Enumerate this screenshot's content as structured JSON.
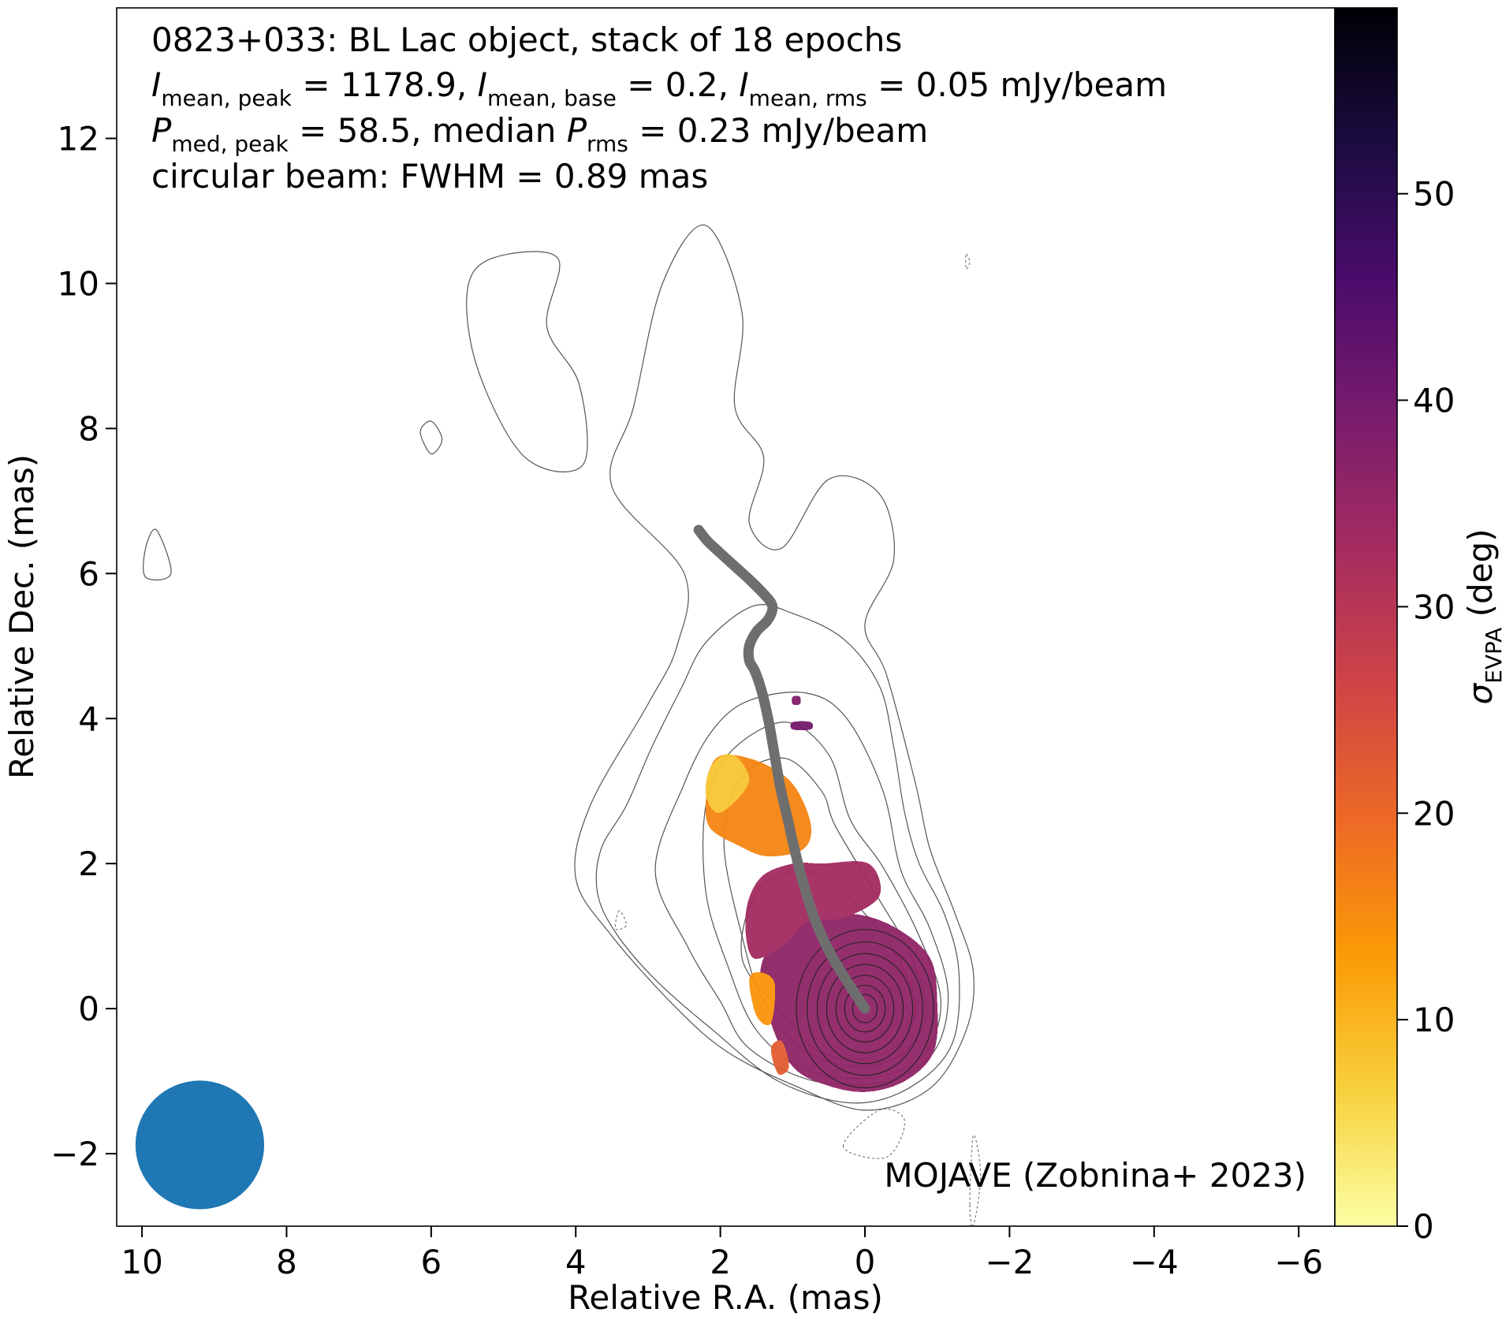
{
  "chart_data": {
    "type": "heatmap",
    "title_lines": [
      "0823+033: BL Lac object, stack of 18 epochs",
      "I_mean,peak = 1178.9, I_mean,base = 0.2, I_mean,rms = 0.05 mJy/beam",
      "P_med,peak = 58.5, median P_rms = 0.23 mJy/beam",
      "circular beam: FWHM = 0.89 mas"
    ],
    "line1": "0823+033: BL Lac object, stack of 18 epochs",
    "line2": {
      "imean_peak_value": " = 1178.9, ",
      "imean_base_value": " = 0.2, ",
      "imean_rms_value": " = 0.05 mJy/beam",
      "sym": "I",
      "sub_peak": "mean, peak",
      "sub_base": "mean, base",
      "sub_rms": "mean, rms"
    },
    "line3": {
      "sym": "P",
      "sub_peak": "med, peak",
      "peak_value": " = 58.5, median ",
      "sub_rms": "rms",
      "rms_value": " = 0.23 mJy/beam"
    },
    "line4": "circular beam: FWHM = 0.89 mas",
    "credit": "MOJAVE (Zobnina+ 2023)",
    "xlabel": "Relative R.A. (mas)",
    "ylabel": "Relative Dec. (mas)",
    "colorbar_label_sym": "σ",
    "colorbar_label_sub": "EVPA",
    "colorbar_label_unit": " (deg)",
    "xlim": [
      10.35,
      -6.5
    ],
    "ylim": [
      -3.0,
      13.8
    ],
    "x_ticks": [
      10,
      8,
      6,
      4,
      2,
      0,
      -2,
      -4,
      -6
    ],
    "x_tick_labels": [
      "10",
      "8",
      "6",
      "4",
      "2",
      "0",
      "−2",
      "−4",
      "−6"
    ],
    "y_ticks": [
      -2,
      0,
      2,
      4,
      6,
      8,
      10,
      12
    ],
    "y_tick_labels": [
      "−2",
      "0",
      "2",
      "4",
      "6",
      "8",
      "10",
      "12"
    ],
    "colorbar_range": [
      0,
      59
    ],
    "colorbar_ticks": [
      0,
      10,
      20,
      30,
      40,
      50
    ],
    "colorbar_tick_labels": [
      "0",
      "10",
      "20",
      "30",
      "40",
      "50"
    ],
    "colormap": "inferno_r",
    "colormap_stops": [
      "#fcffa4",
      "#f7d13d",
      "#fb9b06",
      "#ed6925",
      "#cf4446",
      "#a52c60",
      "#781c6d",
      "#4a0c6b",
      "#1b0c41",
      "#000004"
    ],
    "beam": {
      "x": 9.2,
      "y": -1.88,
      "fwhm_mas": 0.89,
      "color": "#1f77b4"
    },
    "ridge_line": {
      "color": "#6e6e6e",
      "x": [
        0.0,
        0.25,
        0.5,
        0.7,
        0.85,
        0.97,
        1.07,
        1.17,
        1.25,
        1.33,
        1.42,
        1.52,
        1.6,
        1.6,
        1.5,
        1.35,
        1.28,
        1.3,
        1.4,
        1.58,
        1.8,
        2.02,
        2.18,
        2.3
      ],
      "y": [
        0.0,
        0.38,
        0.8,
        1.25,
        1.72,
        2.18,
        2.62,
        3.05,
        3.5,
        3.95,
        4.35,
        4.65,
        4.8,
        5.0,
        5.2,
        5.35,
        5.5,
        5.6,
        5.72,
        5.9,
        6.1,
        6.3,
        6.45,
        6.6
      ]
    },
    "evpa_regions": [
      {
        "name": "core",
        "value": 36,
        "points": [
          [
            0.0,
            -1.15
          ],
          [
            -0.55,
            -1.0
          ],
          [
            -0.95,
            -0.6
          ],
          [
            -1.0,
            0.1
          ],
          [
            -0.9,
            0.7
          ],
          [
            -0.45,
            1.1
          ],
          [
            0.1,
            1.3
          ],
          [
            0.7,
            1.25
          ],
          [
            1.2,
            1.0
          ],
          [
            1.45,
            0.5
          ],
          [
            1.3,
            -0.2
          ],
          [
            1.0,
            -0.8
          ],
          [
            0.55,
            -1.05
          ]
        ]
      },
      {
        "name": "inner-jet",
        "value": 33,
        "points": [
          [
            0.3,
            1.25
          ],
          [
            -0.2,
            1.55
          ],
          [
            -0.05,
            2.0
          ],
          [
            0.6,
            2.0
          ],
          [
            1.0,
            2.0
          ],
          [
            1.45,
            1.8
          ],
          [
            1.65,
            1.3
          ],
          [
            1.55,
            0.7
          ],
          [
            1.1,
            0.9
          ],
          [
            0.8,
            1.2
          ]
        ]
      },
      {
        "name": "knot-upper",
        "value": 16,
        "points": [
          [
            2.15,
            3.3
          ],
          [
            1.95,
            3.5
          ],
          [
            1.45,
            3.4
          ],
          [
            1.0,
            3.1
          ],
          [
            0.75,
            2.55
          ],
          [
            0.85,
            2.2
          ],
          [
            1.35,
            2.1
          ],
          [
            1.75,
            2.25
          ],
          [
            2.15,
            2.5
          ],
          [
            2.2,
            2.9
          ]
        ]
      },
      {
        "name": "knot-bright",
        "value": 8,
        "points": [
          [
            2.15,
            3.3
          ],
          [
            1.95,
            3.5
          ],
          [
            1.75,
            3.45
          ],
          [
            1.6,
            3.15
          ],
          [
            1.8,
            2.85
          ],
          [
            2.05,
            2.7
          ],
          [
            2.2,
            2.95
          ]
        ]
      },
      {
        "name": "core-edge",
        "value": 14,
        "points": [
          [
            1.3,
            -0.2
          ],
          [
            1.25,
            0.35
          ],
          [
            1.45,
            0.5
          ],
          [
            1.6,
            0.4
          ],
          [
            1.5,
            -0.1
          ]
        ]
      },
      {
        "name": "core-edge-lower",
        "value": 22,
        "points": [
          [
            1.05,
            -0.8
          ],
          [
            1.15,
            -0.45
          ],
          [
            1.3,
            -0.55
          ],
          [
            1.2,
            -0.9
          ]
        ]
      },
      {
        "name": "knot-east",
        "value": 40,
        "points": [
          [
            1.0,
            3.95
          ],
          [
            0.75,
            3.95
          ],
          [
            0.75,
            3.85
          ],
          [
            1.0,
            3.85
          ]
        ]
      },
      {
        "name": "knot-north",
        "value": 38,
        "points": [
          [
            1.0,
            4.3
          ],
          [
            0.9,
            4.3
          ],
          [
            0.9,
            4.2
          ],
          [
            1.0,
            4.2
          ]
        ]
      }
    ],
    "contours": [
      {
        "style": "solid",
        "points": [
          [
            1.0,
            -1.05
          ],
          [
            0.0,
            -1.4
          ],
          [
            -0.9,
            -1.1
          ],
          [
            -1.4,
            -0.3
          ],
          [
            -1.5,
            0.5
          ],
          [
            -1.25,
            1.3
          ],
          [
            -0.9,
            2.2
          ],
          [
            -0.7,
            3.1
          ],
          [
            -0.3,
            4.6
          ],
          [
            0.0,
            5.3
          ],
          [
            -0.4,
            6.2
          ],
          [
            -0.2,
            7.1
          ],
          [
            0.5,
            7.3
          ],
          [
            1.15,
            6.35
          ],
          [
            1.6,
            6.7
          ],
          [
            1.4,
            7.6
          ],
          [
            1.8,
            8.3
          ],
          [
            1.7,
            9.6
          ],
          [
            2.2,
            10.8
          ],
          [
            2.8,
            10.0
          ],
          [
            3.2,
            8.3
          ],
          [
            3.5,
            7.2
          ],
          [
            2.5,
            6.0
          ],
          [
            2.6,
            5.0
          ],
          [
            3.0,
            4.2
          ],
          [
            3.8,
            2.8
          ],
          [
            4.0,
            1.8
          ],
          [
            3.5,
            1.0
          ],
          [
            2.6,
            0.0
          ],
          [
            1.9,
            -0.6
          ]
        ]
      },
      {
        "style": "solid",
        "points": [
          [
            4.25,
            10.35
          ],
          [
            5.15,
            10.35
          ],
          [
            5.5,
            9.9
          ],
          [
            5.35,
            8.8
          ],
          [
            4.7,
            7.6
          ],
          [
            3.9,
            7.5
          ],
          [
            3.95,
            8.6
          ],
          [
            4.4,
            9.4
          ]
        ]
      },
      {
        "style": "solid",
        "points": [
          [
            9.95,
            6.35
          ],
          [
            9.8,
            6.6
          ],
          [
            9.6,
            6.0
          ],
          [
            9.95,
            5.95
          ]
        ]
      },
      {
        "style": "solid",
        "points": [
          [
            6.0,
            8.1
          ],
          [
            5.85,
            7.85
          ],
          [
            6.0,
            7.65
          ],
          [
            6.15,
            7.95
          ]
        ]
      },
      {
        "style": "solid",
        "points": [
          [
            3.45,
            1.05
          ],
          [
            3.7,
            1.6
          ],
          [
            3.65,
            2.2
          ],
          [
            3.3,
            2.8
          ],
          [
            2.95,
            3.6
          ],
          [
            2.55,
            4.4
          ],
          [
            2.2,
            5.05
          ],
          [
            1.55,
            5.55
          ],
          [
            1.0,
            5.45
          ],
          [
            0.3,
            5.1
          ],
          [
            -0.2,
            4.45
          ],
          [
            -0.4,
            3.6
          ],
          [
            -0.55,
            2.7
          ],
          [
            -0.75,
            2.0
          ],
          [
            -1.1,
            1.3
          ],
          [
            -1.3,
            0.5
          ],
          [
            -1.2,
            -0.5
          ],
          [
            -0.6,
            -1.1
          ],
          [
            0.2,
            -1.3
          ],
          [
            1.2,
            -1.0
          ],
          [
            2.1,
            -0.3
          ],
          [
            2.9,
            0.4
          ]
        ]
      },
      {
        "style": "solid",
        "points": [
          [
            2.45,
            0.85
          ],
          [
            2.9,
            1.9
          ],
          [
            2.5,
            3.1
          ],
          [
            2.1,
            3.85
          ],
          [
            1.6,
            4.25
          ],
          [
            0.8,
            4.35
          ],
          [
            0.25,
            4.0
          ],
          [
            -0.25,
            3.0
          ],
          [
            -0.5,
            1.9
          ],
          [
            -0.9,
            1.1
          ],
          [
            -1.15,
            0.2
          ],
          [
            -0.95,
            -0.6
          ],
          [
            -0.3,
            -1.0
          ],
          [
            0.7,
            -1.0
          ],
          [
            1.6,
            -0.55
          ],
          [
            2.0,
            0.1
          ]
        ]
      },
      {
        "style": "solid",
        "points": [
          [
            2.2,
            1.6
          ],
          [
            2.2,
            2.8
          ],
          [
            1.85,
            3.55
          ],
          [
            1.1,
            3.95
          ],
          [
            0.5,
            3.5
          ],
          [
            0.2,
            2.6
          ],
          [
            -0.25,
            1.95
          ],
          [
            -0.75,
            1.0
          ],
          [
            -1.05,
            0.1
          ],
          [
            -0.8,
            -0.65
          ],
          [
            -0.1,
            -0.95
          ],
          [
            0.8,
            -0.85
          ],
          [
            1.5,
            -0.3
          ],
          [
            1.9,
            0.6
          ]
        ]
      },
      {
        "style": "solid",
        "points": [
          [
            1.95,
            2.3
          ],
          [
            1.7,
            3.2
          ],
          [
            1.1,
            3.45
          ],
          [
            0.6,
            3.0
          ],
          [
            0.4,
            2.5
          ],
          [
            -0.2,
            1.5
          ],
          [
            -0.6,
            0.8
          ],
          [
            -0.85,
            0.0
          ],
          [
            -0.6,
            -0.55
          ],
          [
            0.0,
            -0.8
          ],
          [
            0.8,
            -0.6
          ],
          [
            1.4,
            0.1
          ],
          [
            1.7,
            1.0
          ]
        ]
      },
      {
        "style": "solid",
        "points": [
          [
            1.7,
            0.7
          ],
          [
            1.5,
            1.6
          ],
          [
            0.9,
            1.9
          ],
          [
            0.3,
            1.6
          ],
          [
            -0.4,
            0.8
          ],
          [
            -0.7,
            0.0
          ],
          [
            -0.45,
            -0.5
          ],
          [
            0.1,
            -0.7
          ],
          [
            0.7,
            -0.55
          ],
          [
            1.2,
            0.0
          ]
        ]
      }
    ],
    "rings_rx": [
      0.95,
      0.8,
      0.66,
      0.53,
      0.4,
      0.28,
      0.17
    ],
    "contours_dashed": [
      {
        "style": "dashed",
        "points": [
          [
            0.3,
            -1.9
          ],
          [
            -0.2,
            -1.4
          ],
          [
            -0.55,
            -1.55
          ],
          [
            -0.3,
            -2.05
          ]
        ]
      },
      {
        "style": "dashed",
        "points": [
          [
            -1.45,
            -2.7
          ],
          [
            -1.5,
            -1.75
          ],
          [
            -1.6,
            -2.3
          ],
          [
            -1.5,
            -3.0
          ]
        ]
      },
      {
        "style": "dashed",
        "points": [
          [
            3.4,
            1.35
          ],
          [
            3.45,
            1.1
          ],
          [
            3.3,
            1.15
          ]
        ]
      },
      {
        "style": "dashed",
        "points": [
          [
            -1.4,
            10.4
          ],
          [
            -1.45,
            10.3
          ],
          [
            -1.4,
            10.2
          ]
        ]
      }
    ]
  }
}
